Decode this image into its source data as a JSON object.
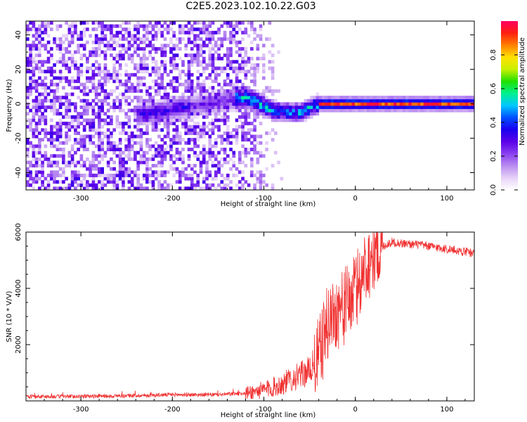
{
  "title": "C2E5.2023.102.10.22.G03",
  "chart_data": [
    {
      "type": "heatmap",
      "title": "C2E5.2023.102.10.22.G03",
      "xlabel": "Height of straight line (km)",
      "ylabel": "Frequency (Hz)",
      "xlim": [
        -360,
        130
      ],
      "ylim": [
        -50,
        48
      ],
      "xticks": [
        -300,
        -200,
        -100,
        0,
        100
      ],
      "yticks": [
        -40,
        -20,
        0,
        20,
        40
      ],
      "colorbar": {
        "label": "Normalized spectral amplitude",
        "range": [
          0,
          1
        ],
        "ticks": [
          0.0,
          0.2,
          0.4,
          0.6,
          0.8
        ],
        "colors": [
          "#ffffff",
          "#e6d2f7",
          "#b98cf0",
          "#8a40f0",
          "#5a00e8",
          "#1a00f0",
          "#0050ff",
          "#00c8ff",
          "#00f090",
          "#20e000",
          "#c8f000",
          "#ffe000",
          "#ff8000",
          "#ff2010",
          "#ff0060"
        ]
      },
      "features": [
        {
          "name": "noise",
          "x_range": [
            -360,
            -80
          ],
          "freq_range": [
            -50,
            48
          ],
          "amplitude": 0.1
        },
        {
          "name": "tone",
          "x_range": [
            -240,
            130
          ],
          "freq": [
            [
              -230,
              -6
            ],
            [
              -120,
              4
            ],
            [
              -90,
              -4
            ],
            [
              -60,
              -5
            ],
            [
              -40,
              0
            ],
            [
              130,
              0
            ]
          ],
          "peak_amplitude": 1.0
        }
      ],
      "grid": false
    },
    {
      "type": "line",
      "xlabel": "Height of straight line (km)",
      "ylabel": "SNR (10 * V/V)",
      "xlim": [
        -360,
        130
      ],
      "ylim": [
        0,
        6000
      ],
      "xticks": [
        -300,
        -200,
        -100,
        0,
        100
      ],
      "yticks": [
        2000,
        4000,
        6000
      ],
      "color": "#f03030",
      "x": [
        -360,
        -300,
        -250,
        -200,
        -150,
        -120,
        -100,
        -80,
        -70,
        -60,
        -50,
        -40,
        -30,
        -20,
        -10,
        0,
        10,
        20,
        30,
        40,
        50,
        70,
        90,
        110,
        130
      ],
      "y": [
        150,
        160,
        180,
        220,
        220,
        280,
        380,
        600,
        780,
        900,
        1100,
        1600,
        2800,
        3200,
        3400,
        3900,
        4700,
        5300,
        5500,
        5650,
        5600,
        5550,
        5450,
        5350,
        5250
      ],
      "grid": false
    }
  ]
}
